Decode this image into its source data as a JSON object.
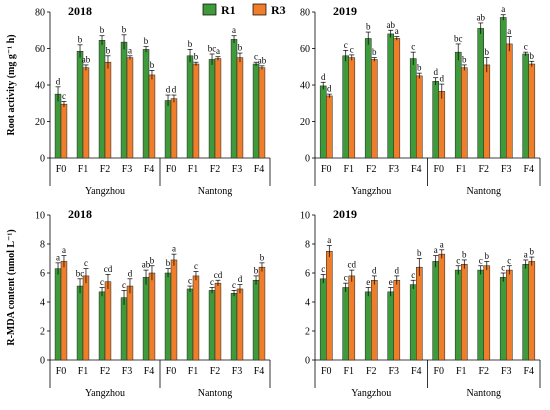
{
  "legend": {
    "series": [
      {
        "name": "R1",
        "color": "#3e9a3a"
      },
      {
        "name": "R3",
        "color": "#ef7d2a"
      }
    ]
  },
  "chart_data": [
    {
      "id": "root-2018",
      "type": "bar",
      "year": "2018",
      "ylabel": "Root activity (mg g⁻¹ h)",
      "ylim": [
        0,
        80
      ],
      "yticks": [
        0,
        20,
        40,
        60,
        80
      ],
      "categories": [
        "F0",
        "F1",
        "F2",
        "F3",
        "F4",
        "F0",
        "F1",
        "F2",
        "F3",
        "F4"
      ],
      "groups": [
        "Yangzhou",
        "Nantong"
      ],
      "series": [
        {
          "name": "R1",
          "values": [
            35,
            58.5,
            64.5,
            63.5,
            59.5,
            31.5,
            56,
            54,
            65,
            51.5
          ],
          "errors": [
            4,
            3.5,
            2.5,
            4,
            1.5,
            3,
            3.5,
            3,
            2,
            1
          ],
          "labels": [
            "d",
            "b",
            "b",
            "b",
            "b",
            "d",
            "b",
            "bc",
            "a",
            "c"
          ]
        },
        {
          "name": "R3",
          "values": [
            29.5,
            49.5,
            52.5,
            55,
            45.5,
            32.5,
            51.5,
            54.5,
            55,
            49.5
          ],
          "errors": [
            1.5,
            1.5,
            3.5,
            1,
            2.5,
            2,
            1,
            1,
            2.5,
            1
          ],
          "labels": [
            "c",
            "ab",
            "b",
            "a",
            "b",
            "d",
            "b",
            "a",
            "b",
            "ab"
          ]
        }
      ]
    },
    {
      "id": "root-2019",
      "type": "bar",
      "year": "2019",
      "ylabel": "",
      "ylim": [
        0,
        80
      ],
      "yticks": [
        0,
        20,
        40,
        60,
        80
      ],
      "categories": [
        "F0",
        "F1",
        "F2",
        "F3",
        "F4",
        "F0",
        "F1",
        "F2",
        "F3",
        "F4"
      ],
      "groups": [
        "Yangzhou",
        "Nantong"
      ],
      "series": [
        {
          "name": "R1",
          "values": [
            39.5,
            56,
            65.5,
            68,
            54.5,
            42,
            58,
            71,
            77,
            57
          ],
          "errors": [
            2,
            3,
            3.5,
            2,
            3.5,
            2,
            4.5,
            3,
            1.5,
            1
          ],
          "labels": [
            "d",
            "c",
            "b",
            "ab",
            "c",
            "d",
            "bc",
            "ab",
            "a",
            "c"
          ]
        },
        {
          "name": "R3",
          "values": [
            34,
            55,
            54,
            65.5,
            45,
            36.5,
            49.5,
            51,
            62.5,
            51.5
          ],
          "errors": [
            1,
            1.5,
            1,
            1,
            1.5,
            4,
            1.5,
            4,
            4,
            1.5
          ],
          "labels": [
            "d",
            "c",
            "b",
            "a",
            "b",
            "d",
            "b",
            "b",
            "a",
            "b"
          ]
        }
      ]
    },
    {
      "id": "mda-2018",
      "type": "bar",
      "year": "2018",
      "ylabel": "R-MDA content (nmol L⁻¹)",
      "ylim": [
        0,
        10
      ],
      "yticks": [
        0,
        2,
        4,
        6,
        8,
        10
      ],
      "categories": [
        "F0",
        "F1",
        "F2",
        "F3",
        "F4",
        "F0",
        "F1",
        "F2",
        "F3",
        "F4"
      ],
      "groups": [
        "Yangzhou",
        "Nantong"
      ],
      "series": [
        {
          "name": "R1",
          "values": [
            6.3,
            5.1,
            4.7,
            4.3,
            5.7,
            6.0,
            4.9,
            4.8,
            4.6,
            5.5
          ],
          "errors": [
            0.4,
            0.5,
            0.3,
            0.5,
            0.5,
            0.3,
            0.2,
            0.2,
            0.2,
            0.3
          ],
          "labels": [
            "a",
            "bc",
            "c",
            "c",
            "ab",
            "b",
            "c",
            "c",
            "c",
            "b"
          ]
        },
        {
          "name": "R3",
          "values": [
            6.8,
            5.8,
            5.4,
            5.1,
            6.0,
            6.9,
            5.8,
            5.3,
            4.9,
            6.4
          ],
          "errors": [
            0.4,
            0.5,
            0.5,
            0.5,
            0.5,
            0.4,
            0.3,
            0.2,
            0.3,
            0.3
          ],
          "labels": [
            "a",
            "c",
            "cd",
            "d",
            "b",
            "a",
            "c",
            "cd",
            "d",
            "b"
          ]
        }
      ]
    },
    {
      "id": "mda-2019",
      "type": "bar",
      "year": "2019",
      "ylabel": "",
      "ylim": [
        0,
        10
      ],
      "yticks": [
        0,
        2,
        4,
        6,
        8,
        10
      ],
      "categories": [
        "F0",
        "F1",
        "F2",
        "F3",
        "F4",
        "F0",
        "F1",
        "F2",
        "F3",
        "F4"
      ],
      "groups": [
        "Yangzhou",
        "Nantong"
      ],
      "series": [
        {
          "name": "R1",
          "values": [
            5.6,
            5.0,
            4.7,
            4.7,
            5.2,
            6.8,
            6.2,
            6.2,
            5.7,
            6.6
          ],
          "errors": [
            0.3,
            0.3,
            0.3,
            0.3,
            0.3,
            0.4,
            0.3,
            0.3,
            0.3,
            0.3
          ],
          "labels": [
            "c",
            "c",
            "e",
            "e",
            "c",
            "a",
            "c",
            "c",
            "c",
            "a"
          ]
        },
        {
          "name": "R3",
          "values": [
            7.5,
            5.8,
            5.5,
            5.5,
            6.4,
            7.3,
            6.6,
            6.5,
            6.2,
            6.8
          ],
          "errors": [
            0.4,
            0.4,
            0.3,
            0.3,
            0.6,
            0.3,
            0.3,
            0.3,
            0.3,
            0.3
          ],
          "labels": [
            "a",
            "cd",
            "d",
            "d",
            "b",
            "a",
            "b",
            "b",
            "c",
            "b"
          ]
        }
      ]
    }
  ]
}
